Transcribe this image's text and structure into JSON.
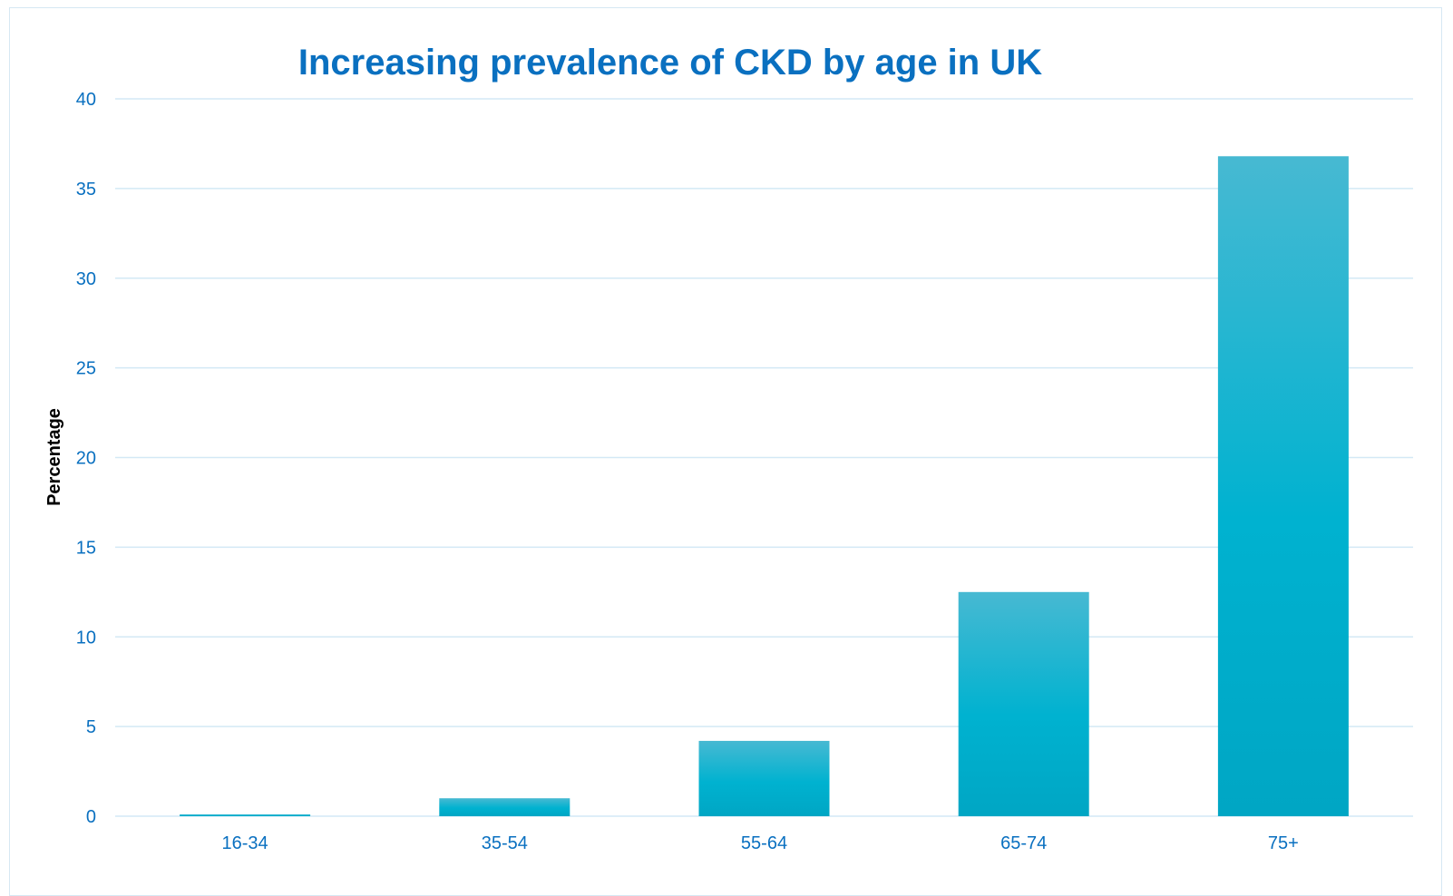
{
  "chart_data": {
    "type": "bar",
    "title": "Increasing prevalence of CKD by age in UK",
    "xlabel": "",
    "ylabel": "Percentage",
    "categories": [
      "16-34",
      "35-54",
      "55-64",
      "65-74",
      "75+"
    ],
    "values": [
      0.1,
      1.0,
      4.2,
      12.5,
      36.8
    ],
    "ylim": [
      0,
      40
    ],
    "yticks": [
      0,
      5,
      10,
      15,
      20,
      25,
      30,
      35,
      40
    ],
    "ytick_labels": [
      "0",
      "5",
      "10",
      "15",
      "20",
      "25",
      "30",
      "35",
      "40"
    ],
    "grid": true,
    "legend": "none",
    "colors": {
      "bar_top": "#47b9d2",
      "bar_mid": "#00b2d0",
      "bar_bottom": "#00a6c4",
      "title": "#0a70c0",
      "tick_labels": "#0a70c0",
      "gridlines": "#d3e9f5"
    }
  }
}
